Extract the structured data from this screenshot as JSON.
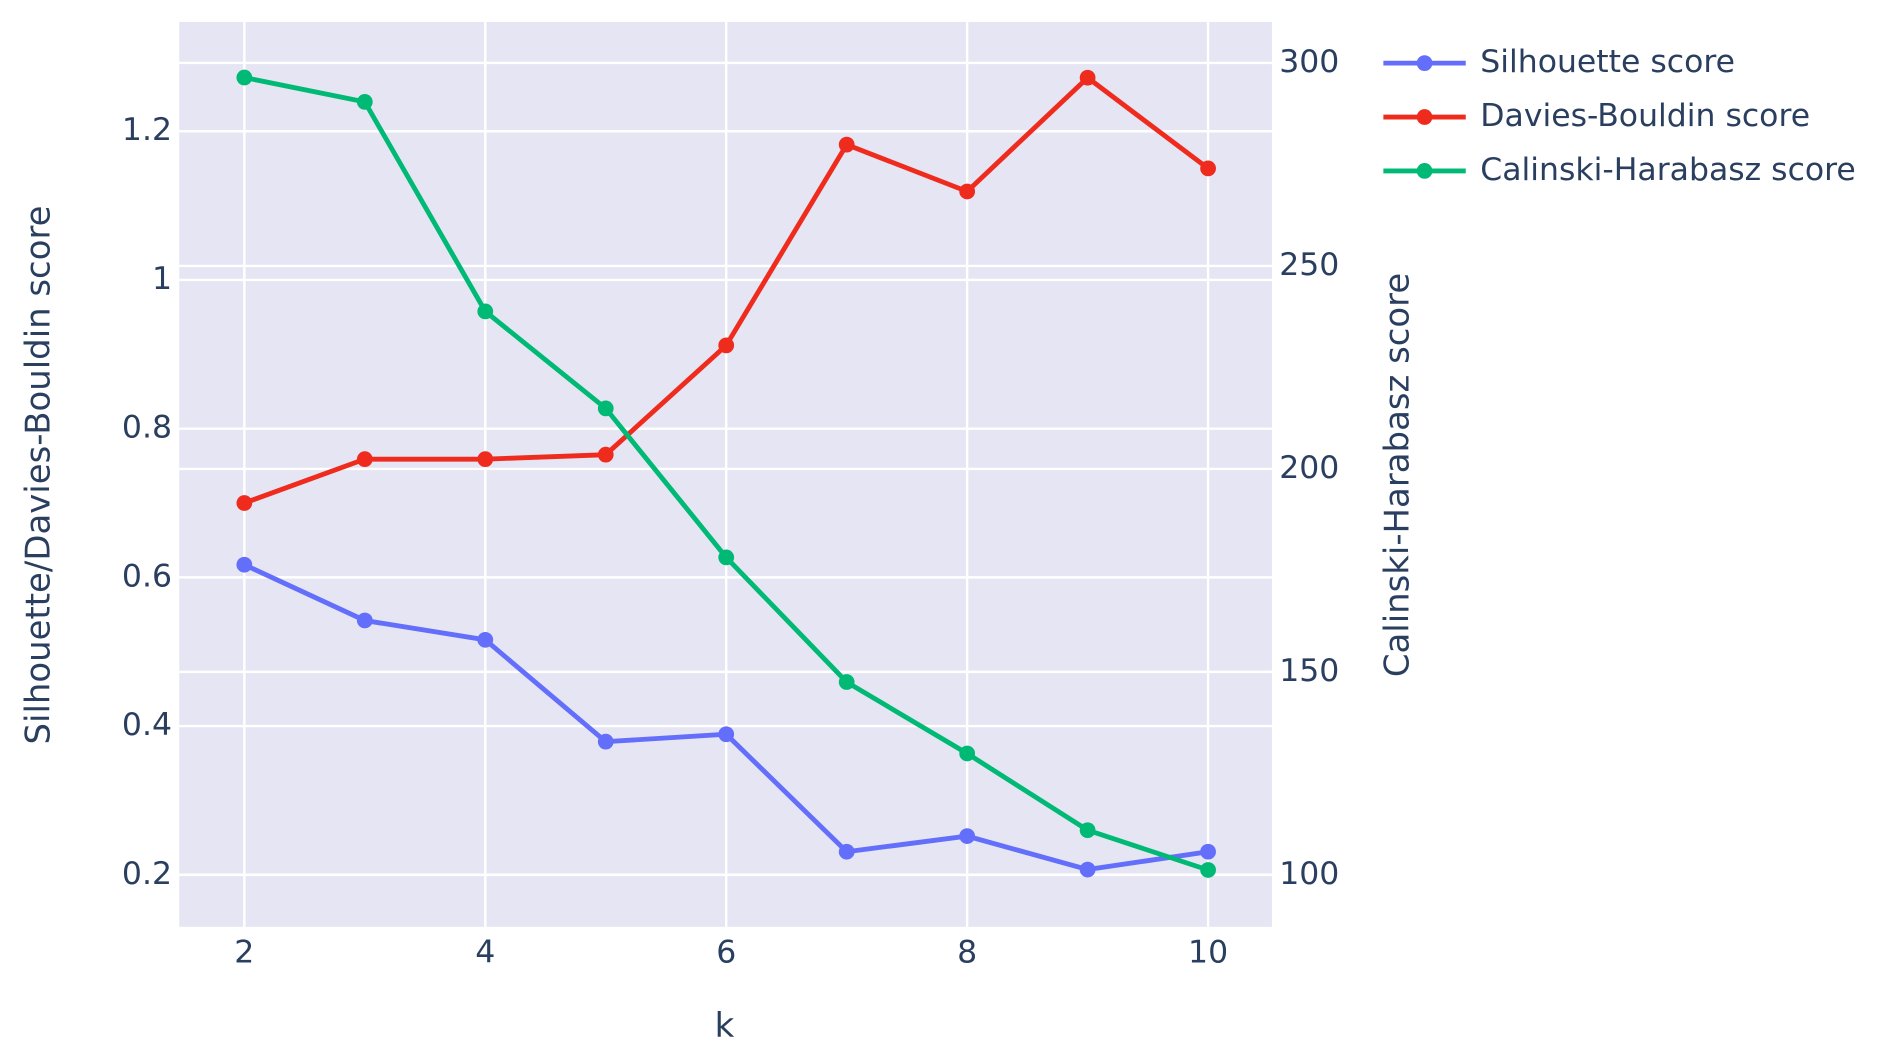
{
  "chart_data": {
    "type": "line",
    "x_label": "k",
    "y_label": "Silhouette/Davies-Bouldin score",
    "y2_label": "Calinski-Harabasz score",
    "x": [
      2,
      3,
      4,
      5,
      6,
      7,
      8,
      9,
      10
    ],
    "xlim": [
      1.46,
      10.53
    ],
    "xticks": [
      2,
      4,
      6,
      8,
      10
    ],
    "ylim": [
      0.13,
      1.347
    ],
    "yticks": [
      0.2,
      0.4,
      0.6,
      0.8,
      1,
      1.2
    ],
    "y2lim": [
      87.2,
      310.1
    ],
    "y2ticks": [
      100,
      150,
      200,
      250,
      300
    ],
    "grid": true,
    "legend": "outside-top-right",
    "series": [
      {
        "name": "Silhouette score",
        "color": "#636efa",
        "values": [
          0.617,
          0.542,
          0.516,
          0.379,
          0.389,
          0.231,
          0.252,
          0.207,
          0.231
        ]
      },
      {
        "name": "Davies-Bouldin score",
        "color": "#ef2b1e",
        "values": [
          0.7,
          0.759,
          0.759,
          0.765,
          0.912,
          1.182,
          1.119,
          1.272,
          1.15
        ]
      },
      {
        "name": "Calinski-Harabasz score",
        "color": "#00b974",
        "axis": "y2",
        "values": [
          296.4,
          290.4,
          238.8,
          214.9,
          178.2,
          147.5,
          129.9,
          111.0,
          101.2
        ]
      }
    ]
  }
}
